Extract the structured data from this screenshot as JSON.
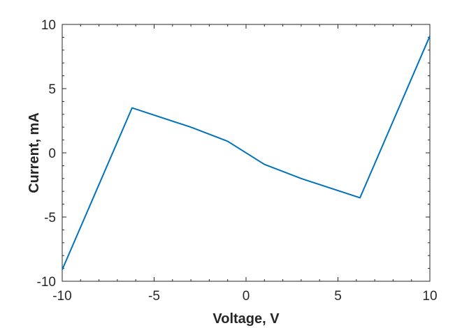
{
  "chart_data": {
    "type": "line",
    "xlabel": "Voltage, V",
    "ylabel": "Current, mA",
    "xlim": [
      -10,
      10
    ],
    "ylim": [
      -10,
      10
    ],
    "xticks": [
      -10,
      -5,
      0,
      5,
      10
    ],
    "yticks": [
      -10,
      -5,
      0,
      5,
      10
    ],
    "xtick_labels": [
      "-10",
      "-5",
      "0",
      "5",
      "10"
    ],
    "ytick_labels": [
      "-10",
      "-5",
      "0",
      "5",
      "10"
    ],
    "grid": false,
    "box": true,
    "series": [
      {
        "color": "#0072BD",
        "x": [
          -10,
          -6.2,
          -3,
          -1,
          1,
          3,
          6.2,
          10
        ],
        "y": [
          -9.1,
          3.5,
          2.0,
          0.9,
          -0.9,
          -2.0,
          -3.5,
          9.1
        ]
      }
    ]
  }
}
